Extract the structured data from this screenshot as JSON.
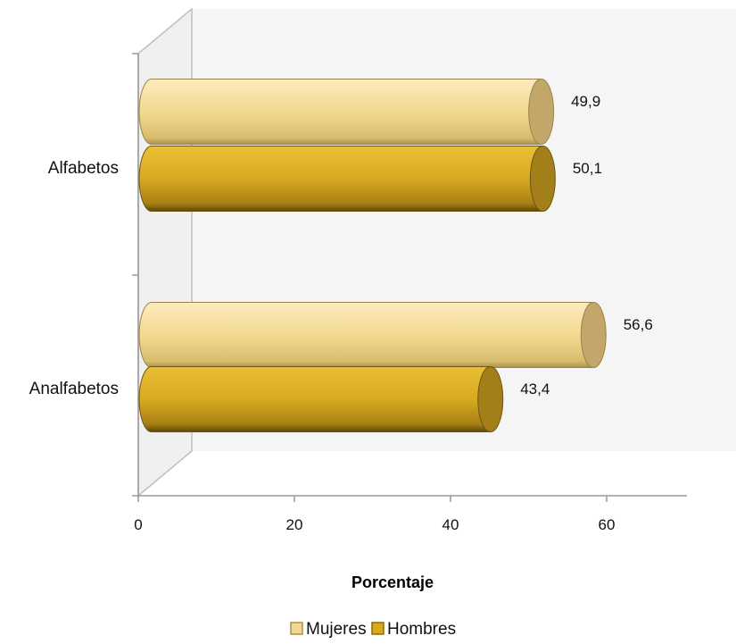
{
  "chart_data": {
    "type": "bar",
    "orientation": "horizontal",
    "style": "3d-cylinder",
    "categories": [
      "Alfabetos",
      "Analfabetos"
    ],
    "series": [
      {
        "name": "Mujeres",
        "values": [
          49.9,
          56.6
        ],
        "labels": [
          "49,9",
          "56,6"
        ],
        "color": "#F3D990"
      },
      {
        "name": "Hombres",
        "values": [
          50.1,
          43.4
        ],
        "labels": [
          "50,1",
          "43,4"
        ],
        "color": "#D8AA22"
      }
    ],
    "xlabel": "Porcentaje",
    "xlim": [
      0,
      70
    ],
    "xticks": [
      0,
      20,
      40,
      60
    ],
    "xtick_labels": [
      "0",
      "20",
      "40",
      "60"
    ],
    "legend": "bottom",
    "grid": false
  }
}
